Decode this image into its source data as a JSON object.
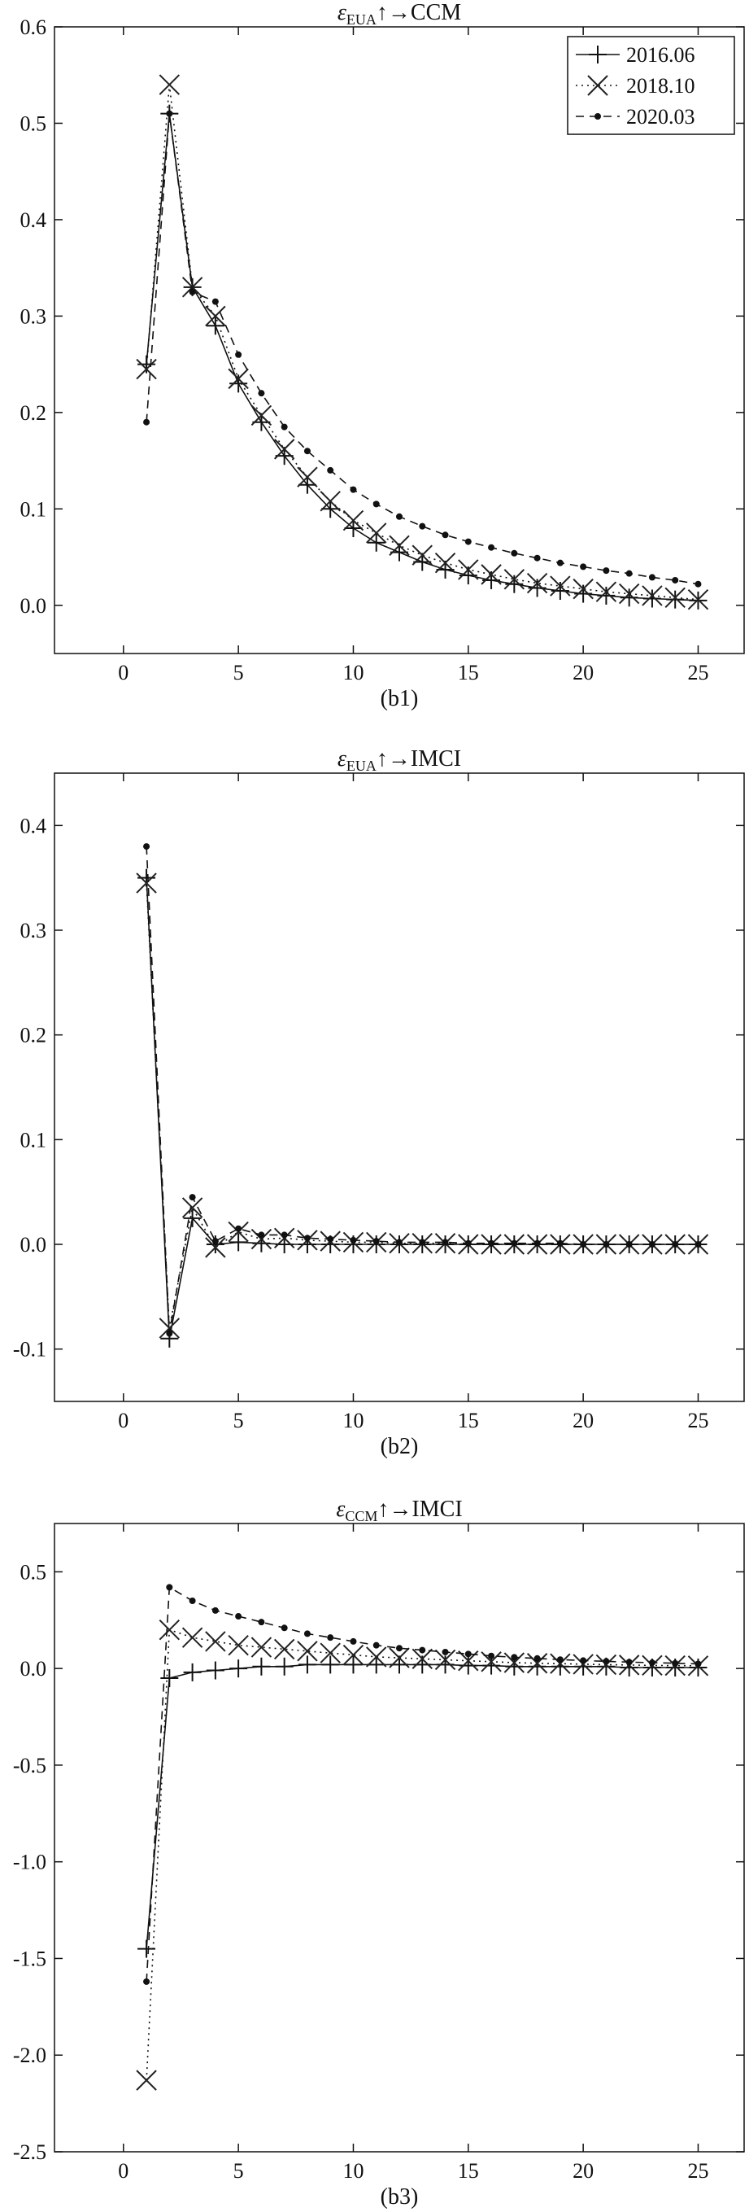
{
  "chart_data": [
    {
      "type": "line",
      "title_symbol": "ε",
      "title_subscript": "EUA",
      "title_suffix": "↑→CCM",
      "caption": "(b1)",
      "xlim": [
        -3,
        27
      ],
      "ylim": [
        -0.05,
        0.6
      ],
      "xticks": [
        0,
        5,
        10,
        15,
        20,
        25
      ],
      "yticks": [
        0.0,
        0.1,
        0.2,
        0.3,
        0.4,
        0.5,
        0.6
      ],
      "ytick_labels": [
        "0.0",
        "0.1",
        "0.2",
        "0.3",
        "0.4",
        "0.5",
        "0.6"
      ],
      "legend": {
        "placement": "top-right",
        "entries": [
          "2016.06",
          "2018.10",
          "2020.03"
        ]
      },
      "x": [
        1,
        2,
        3,
        4,
        5,
        6,
        7,
        8,
        9,
        10,
        11,
        12,
        13,
        14,
        15,
        16,
        17,
        18,
        19,
        20,
        21,
        22,
        23,
        24,
        25
      ],
      "series": [
        {
          "name": "2016.06",
          "style": "solid-plus",
          "values": [
            0.25,
            0.51,
            0.33,
            0.29,
            0.23,
            0.19,
            0.155,
            0.125,
            0.1,
            0.08,
            0.065,
            0.055,
            0.045,
            0.037,
            0.031,
            0.026,
            0.022,
            0.018,
            0.015,
            0.012,
            0.01,
            0.008,
            0.007,
            0.006,
            0.005
          ]
        },
        {
          "name": "2018.10",
          "style": "dotted-x",
          "values": [
            0.245,
            0.54,
            0.33,
            0.3,
            0.235,
            0.197,
            0.162,
            0.133,
            0.108,
            0.088,
            0.075,
            0.062,
            0.052,
            0.044,
            0.037,
            0.032,
            0.027,
            0.023,
            0.02,
            0.017,
            0.014,
            0.012,
            0.01,
            0.008,
            0.006
          ]
        },
        {
          "name": "2020.03",
          "style": "dashed-dot",
          "values": [
            0.19,
            0.51,
            0.325,
            0.315,
            0.26,
            0.22,
            0.185,
            0.16,
            0.14,
            0.12,
            0.105,
            0.092,
            0.082,
            0.073,
            0.066,
            0.06,
            0.054,
            0.049,
            0.044,
            0.04,
            0.036,
            0.033,
            0.029,
            0.026,
            0.022
          ]
        }
      ]
    },
    {
      "type": "line",
      "title_symbol": "ε",
      "title_subscript": "EUA",
      "title_suffix": "↑→IMCI",
      "caption": "(b2)",
      "xlim": [
        -3,
        27
      ],
      "ylim": [
        -0.15,
        0.45
      ],
      "xticks": [
        0,
        5,
        10,
        15,
        20,
        25
      ],
      "yticks": [
        -0.1,
        0.0,
        0.1,
        0.2,
        0.3,
        0.4
      ],
      "ytick_labels": [
        "-0.1",
        "0.0",
        "0.1",
        "0.2",
        "0.3",
        "0.4"
      ],
      "x": [
        1,
        2,
        3,
        4,
        5,
        6,
        7,
        8,
        9,
        10,
        11,
        12,
        13,
        14,
        15,
        16,
        17,
        18,
        19,
        20,
        21,
        22,
        23,
        24,
        25
      ],
      "series": [
        {
          "name": "2016.06",
          "style": "solid-plus",
          "values": [
            0.35,
            -0.09,
            0.025,
            0.0,
            0.002,
            0.001,
            0.0,
            0.0,
            0.0,
            0.0,
            0.0,
            0.0,
            0.0,
            0.0,
            0.0,
            0.0,
            0.0,
            0.0,
            0.0,
            0.0,
            0.0,
            0.0,
            0.0,
            0.0,
            0.0
          ]
        },
        {
          "name": "2018.10",
          "style": "dotted-x",
          "values": [
            0.345,
            -0.08,
            0.035,
            -0.003,
            0.012,
            0.005,
            0.006,
            0.004,
            0.003,
            0.002,
            0.002,
            0.001,
            0.001,
            0.001,
            0.0,
            0.0,
            0.0,
            0.0,
            0.0,
            0.0,
            0.0,
            0.0,
            0.0,
            0.0,
            0.0
          ]
        },
        {
          "name": "2020.03",
          "style": "dashed-dot",
          "values": [
            0.38,
            -0.085,
            0.045,
            0.003,
            0.015,
            0.009,
            0.009,
            0.006,
            0.005,
            0.004,
            0.003,
            0.002,
            0.002,
            0.002,
            0.001,
            0.001,
            0.001,
            0.001,
            0.001,
            0.0,
            0.0,
            0.0,
            0.0,
            0.0,
            0.0
          ]
        }
      ]
    },
    {
      "type": "line",
      "title_symbol": "ε",
      "title_subscript": "CCM",
      "title_suffix": "↑→IMCI",
      "caption": "(b3)",
      "xlim": [
        -3,
        27
      ],
      "ylim": [
        -2.5,
        0.75
      ],
      "xticks": [
        0,
        5,
        10,
        15,
        20,
        25
      ],
      "yticks": [
        -2.5,
        -2.0,
        -1.5,
        -1.0,
        -0.5,
        0.0,
        0.5
      ],
      "ytick_labels": [
        "-2.5",
        "-2.0",
        "-1.5",
        "-1.0",
        "-0.5",
        "0.0",
        "0.5"
      ],
      "x": [
        1,
        2,
        3,
        4,
        5,
        6,
        7,
        8,
        9,
        10,
        11,
        12,
        13,
        14,
        15,
        16,
        17,
        18,
        19,
        20,
        21,
        22,
        23,
        24,
        25
      ],
      "series": [
        {
          "name": "2016.06",
          "style": "solid-plus",
          "values": [
            -1.45,
            -0.05,
            -0.02,
            -0.01,
            0.0,
            0.01,
            0.01,
            0.02,
            0.02,
            0.02,
            0.02,
            0.02,
            0.02,
            0.02,
            0.015,
            0.015,
            0.01,
            0.01,
            0.01,
            0.01,
            0.01,
            0.005,
            0.005,
            0.005,
            0.005
          ]
        },
        {
          "name": "2018.10",
          "style": "dotted-x",
          "values": [
            -2.13,
            0.2,
            0.16,
            0.14,
            0.12,
            0.11,
            0.1,
            0.09,
            0.08,
            0.07,
            0.06,
            0.055,
            0.05,
            0.045,
            0.04,
            0.035,
            0.03,
            0.027,
            0.025,
            0.022,
            0.02,
            0.018,
            0.016,
            0.015,
            0.014
          ]
        },
        {
          "name": "2020.03",
          "style": "dashed-dot",
          "values": [
            -1.62,
            0.42,
            0.35,
            0.3,
            0.27,
            0.24,
            0.21,
            0.18,
            0.16,
            0.14,
            0.12,
            0.105,
            0.095,
            0.085,
            0.075,
            0.065,
            0.058,
            0.052,
            0.046,
            0.041,
            0.037,
            0.033,
            0.03,
            0.027,
            0.024
          ]
        }
      ]
    }
  ]
}
